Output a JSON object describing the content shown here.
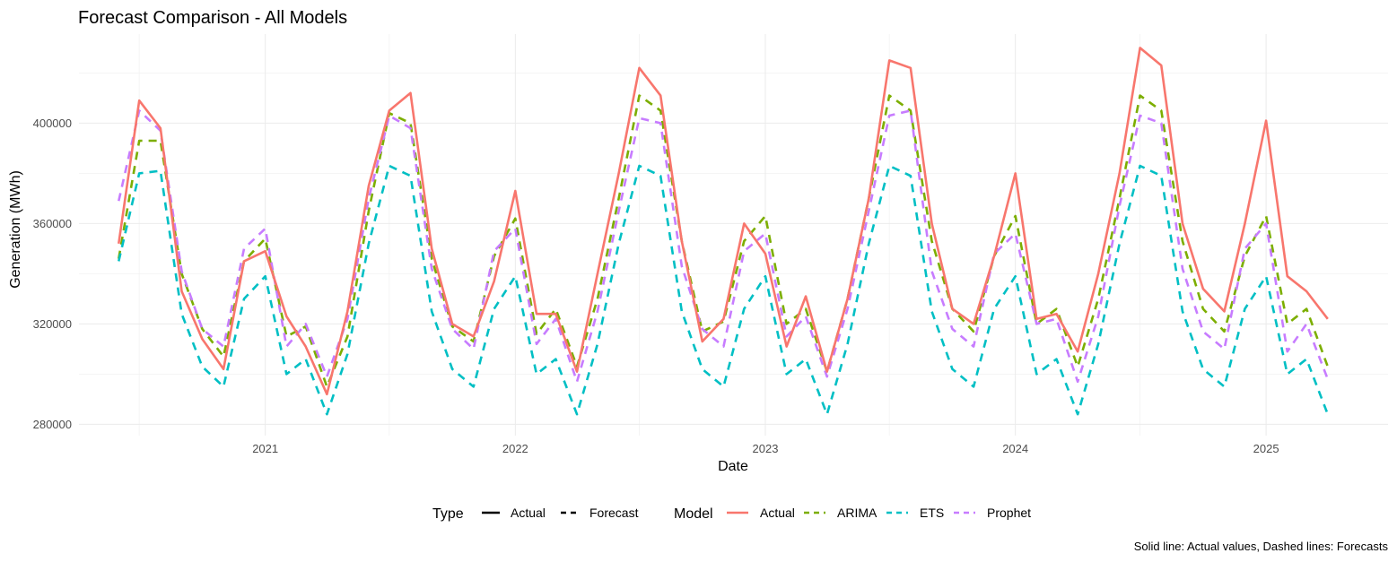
{
  "chart_data": {
    "type": "line",
    "title": "Forecast Comparison - All Models",
    "xlabel": "Date",
    "ylabel": "Generation (MWh)",
    "caption": "Solid line: Actual values, Dashed lines: Forecasts",
    "x_ticks": [
      "2021",
      "2022",
      "2023",
      "2024",
      "2025"
    ],
    "y_ticks": [
      "280000",
      "320000",
      "360000",
      "400000"
    ],
    "xlim": [
      "2020-04-04",
      "2025-06-28"
    ],
    "ylim": [
      275500,
      435500
    ],
    "grid": true,
    "legend_position": "bottom",
    "legend": {
      "type_title": "Type",
      "type_entries": [
        {
          "label": "Actual",
          "linetype": "solid"
        },
        {
          "label": "Forecast",
          "linetype": "dashed"
        }
      ],
      "model_title": "Model",
      "model_entries": [
        {
          "label": "Actual",
          "color": "#F8766D"
        },
        {
          "label": "ARIMA",
          "color": "#7CAE00"
        },
        {
          "label": "ETS",
          "color": "#00BFC4"
        },
        {
          "label": "Prophet",
          "color": "#C77CFF"
        }
      ]
    },
    "x": [
      "2020-06",
      "2020-07",
      "2020-08",
      "2020-09",
      "2020-10",
      "2020-11",
      "2020-12",
      "2021-01",
      "2021-02",
      "2021-03",
      "2021-04",
      "2021-05",
      "2021-06",
      "2021-07",
      "2021-08",
      "2021-09",
      "2021-10",
      "2021-11",
      "2021-12",
      "2022-01",
      "2022-02",
      "2022-03",
      "2022-04",
      "2022-05",
      "2022-06",
      "2022-07",
      "2022-08",
      "2022-09",
      "2022-10",
      "2022-11",
      "2022-12",
      "2023-01",
      "2023-02",
      "2023-03",
      "2023-04",
      "2023-05",
      "2023-06",
      "2023-07",
      "2023-08",
      "2023-09",
      "2023-10",
      "2023-11",
      "2023-12",
      "2024-01",
      "2024-02",
      "2024-03",
      "2024-04",
      "2024-05",
      "2024-06",
      "2024-07",
      "2024-08",
      "2024-09",
      "2024-10",
      "2024-11",
      "2024-12",
      "2025-01",
      "2025-02",
      "2025-03",
      "2025-04"
    ],
    "series": [
      {
        "name": "Actual",
        "type": "Actual",
        "color": "#F8766D",
        "values": [
          352000,
          409000,
          398000,
          333000,
          314000,
          302000,
          345000,
          349000,
          323000,
          311000,
          292000,
          325000,
          375000,
          405000,
          412000,
          350000,
          320000,
          315000,
          337000,
          373000,
          324000,
          324000,
          301000,
          340000,
          380000,
          422000,
          411000,
          353000,
          313000,
          322000,
          360000,
          348000,
          311000,
          331000,
          301000,
          330000,
          370000,
          425000,
          422000,
          360000,
          326000,
          320000,
          347000,
          380000,
          322000,
          324000,
          309000,
          340000,
          380000,
          430000,
          423000,
          360000,
          334000,
          325000,
          360000,
          401000,
          339000,
          333000,
          322000
        ]
      },
      {
        "name": "ARIMA",
        "type": "Forecast",
        "color": "#7CAE00",
        "values": [
          346000,
          393000,
          393000,
          340000,
          318000,
          307000,
          345000,
          354000,
          315000,
          319000,
          295000,
          315000,
          365000,
          404000,
          400000,
          346000,
          319000,
          313000,
          347000,
          362000,
          316000,
          326000,
          303000,
          330000,
          370000,
          411000,
          405000,
          353000,
          317000,
          321000,
          353000,
          363000,
          320000,
          326000,
          301000,
          330000,
          370000,
          411000,
          405000,
          353000,
          326000,
          317000,
          347000,
          363000,
          320000,
          326000,
          303000,
          330000,
          370000,
          411000,
          405000,
          353000,
          326000,
          317000,
          347000,
          363000,
          320000,
          326000,
          303000
        ]
      },
      {
        "name": "ETS",
        "type": "Forecast",
        "color": "#00BFC4",
        "values": [
          345000,
          380000,
          381000,
          324000,
          303000,
          295000,
          330000,
          339000,
          300000,
          306000,
          284000,
          308000,
          352000,
          383000,
          379000,
          325000,
          302000,
          295000,
          326000,
          339000,
          300000,
          306000,
          284000,
          312000,
          352000,
          383000,
          379000,
          325000,
          302000,
          295000,
          326000,
          339000,
          300000,
          306000,
          284000,
          312000,
          352000,
          383000,
          379000,
          325000,
          302000,
          295000,
          326000,
          339000,
          300000,
          306000,
          284000,
          312000,
          352000,
          383000,
          379000,
          325000,
          302000,
          295000,
          326000,
          339000,
          300000,
          306000,
          284000
        ]
      },
      {
        "name": "Prophet",
        "type": "Forecast",
        "color": "#C77CFF",
        "values": [
          369000,
          405000,
          397000,
          341000,
          318000,
          311000,
          350000,
          358000,
          311000,
          320000,
          299000,
          322000,
          370000,
          403000,
          398000,
          342000,
          318000,
          310000,
          349000,
          358000,
          312000,
          322000,
          297000,
          325000,
          365000,
          402000,
          400000,
          343000,
          318000,
          311000,
          349000,
          356000,
          315000,
          323000,
          299000,
          326000,
          365000,
          403000,
          405000,
          341000,
          318000,
          311000,
          348000,
          356000,
          320000,
          322000,
          297000,
          323000,
          367000,
          403000,
          400000,
          342000,
          317000,
          310000,
          350000,
          360000,
          309000,
          320000,
          298000
        ]
      }
    ]
  }
}
